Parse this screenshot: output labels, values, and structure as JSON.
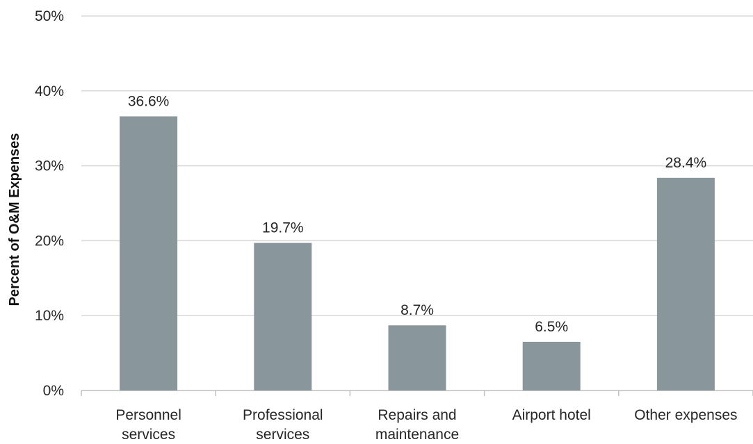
{
  "chart_data": {
    "type": "bar",
    "title": "",
    "xlabel": "",
    "ylabel": "Percent of O&M Expenses",
    "categories": [
      [
        "Personnel",
        "services"
      ],
      [
        "Professional",
        "services"
      ],
      [
        "Repairs and",
        "maintenance"
      ],
      [
        "Airport hotel"
      ],
      [
        "Other expenses"
      ]
    ],
    "values": [
      36.6,
      19.7,
      8.7,
      6.5,
      28.4
    ],
    "data_labels": [
      "36.6%",
      "19.7%",
      "8.7%",
      "6.5%",
      "28.4%"
    ],
    "ylim": [
      0,
      50
    ],
    "yticks": [
      0,
      10,
      20,
      30,
      40,
      50
    ],
    "ytick_labels": [
      "0%",
      "10%",
      "20%",
      "30%",
      "40%",
      "50%"
    ],
    "grid": true,
    "legend": "none",
    "bar_color": "#89969c"
  }
}
